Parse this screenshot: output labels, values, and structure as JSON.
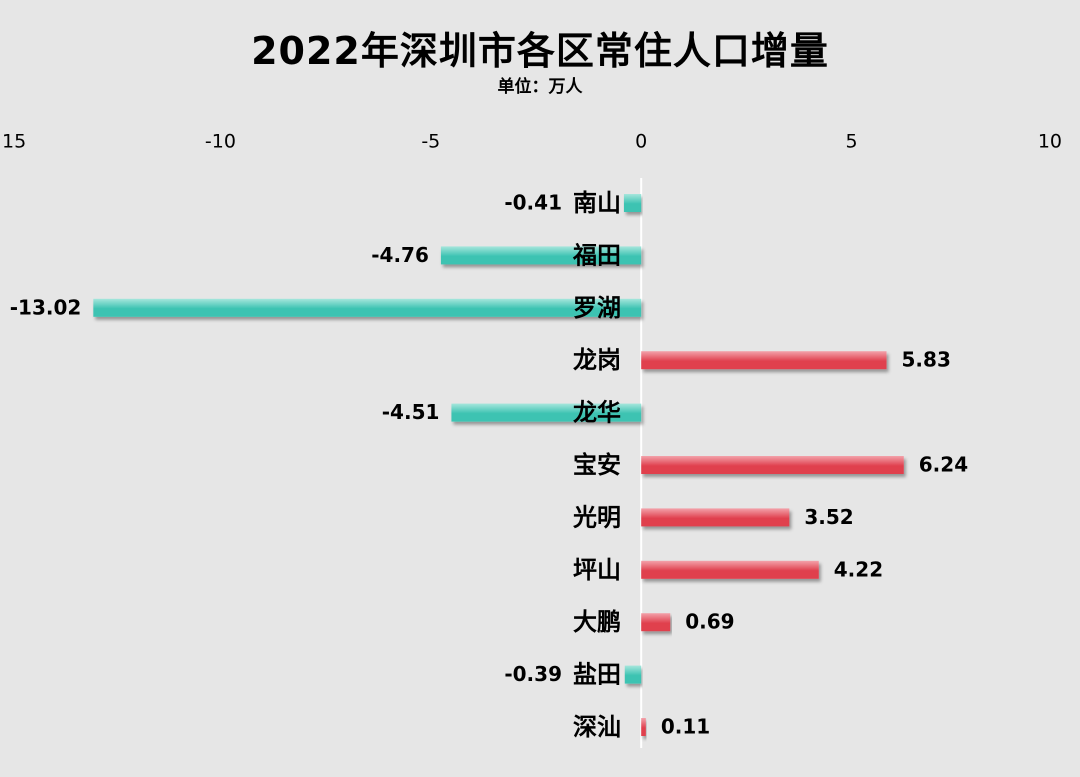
{
  "chart_data": {
    "type": "bar",
    "orientation": "horizontal",
    "title": "2022年深圳市各区常住人口增量",
    "subtitle": "单位：万人",
    "categories": [
      "南山",
      "福田",
      "罗湖",
      "龙岗",
      "龙华",
      "宝安",
      "光明",
      "坪山",
      "大鹏",
      "盐田",
      "深汕"
    ],
    "values": [
      -0.41,
      -4.76,
      -13.02,
      5.83,
      -4.51,
      6.24,
      3.52,
      4.22,
      0.69,
      -0.39,
      0.11
    ],
    "data_labels": [
      "-0.41",
      "-4.76",
      "-13.02",
      "5.83",
      "-4.51",
      "6.24",
      "3.52",
      "4.22",
      "0.69",
      "-0.39",
      "0.11"
    ],
    "x_ticks": [
      "15",
      "-10",
      "-5",
      "0",
      "5",
      "10"
    ],
    "xlim": [
      -15,
      10
    ],
    "axis_position": "top",
    "grid": false,
    "legend": "none",
    "colors": {
      "positive": "#e0404e",
      "positive_light": "#f3a2aa",
      "negative": "#3cc3b2",
      "negative_light": "#a6e6dc",
      "background": "#e6e6e6"
    }
  }
}
